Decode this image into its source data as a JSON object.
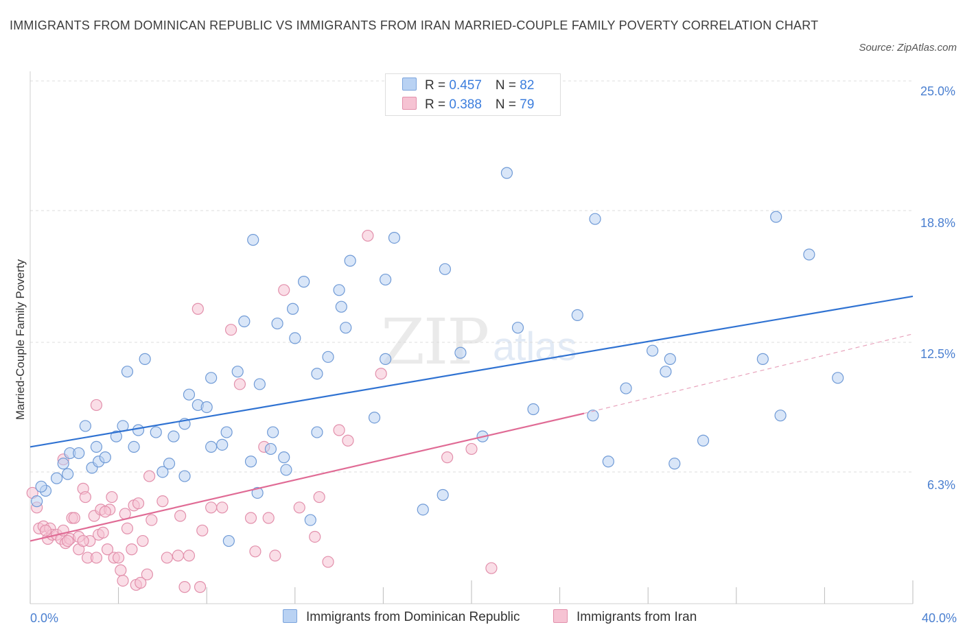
{
  "title": "IMMIGRANTS FROM DOMINICAN REPUBLIC VS IMMIGRANTS FROM IRAN MARRIED-COUPLE FAMILY POVERTY CORRELATION CHART",
  "source": "Source: ZipAtlas.com",
  "watermark": {
    "zip": "ZIP",
    "atlas": "atlas"
  },
  "legend": {
    "rows": [
      {
        "r_label": "R = ",
        "r_value": "0.457",
        "n_label": "N = ",
        "n_value": "82"
      },
      {
        "r_label": "R = ",
        "r_value": "0.388",
        "n_label": "N = ",
        "n_value": "79"
      }
    ]
  },
  "bottom_legend": [
    "Immigrants from Dominican Republic",
    "Immigrants from Iran"
  ],
  "colors": {
    "blue": "#4a7fd0",
    "blue_fill": "#b9d2f3",
    "pink": "#e06b95",
    "pink_fill": "#f6c3d3",
    "accent": "#3b7ddd"
  },
  "chart_data": {
    "type": "scatter",
    "title": "IMMIGRANTS FROM DOMINICAN REPUBLIC VS IMMIGRANTS FROM IRAN MARRIED-COUPLE FAMILY POVERTY CORRELATION CHART",
    "xlabel": "",
    "ylabel": "Married-Couple Family Poverty",
    "xlim": [
      0,
      40
    ],
    "ylim": [
      0,
      25
    ],
    "x_tick_labels": [
      "0.0%",
      "40.0%"
    ],
    "y_tick_labels": [
      "6.3%",
      "12.5%",
      "18.8%",
      "25.0%"
    ],
    "y_tick_values": [
      6.3,
      12.5,
      18.8,
      25.0
    ],
    "grid": true,
    "legend_position": "top-center",
    "series": [
      {
        "name": "Immigrants from Dominican Republic",
        "color": "#4a7fd0",
        "R": 0.457,
        "N": 82,
        "trend": {
          "x": [
            0,
            40
          ],
          "y": [
            7.5,
            14.7
          ]
        },
        "points": [
          [
            0.3,
            4.9
          ],
          [
            0.7,
            5.4
          ],
          [
            0.5,
            5.6
          ],
          [
            1.2,
            6.0
          ],
          [
            1.7,
            6.2
          ],
          [
            1.5,
            6.7
          ],
          [
            1.8,
            7.2
          ],
          [
            2.2,
            7.2
          ],
          [
            2.8,
            6.5
          ],
          [
            3.1,
            6.8
          ],
          [
            3.4,
            7.0
          ],
          [
            3.0,
            7.5
          ],
          [
            3.9,
            8.0
          ],
          [
            4.7,
            7.5
          ],
          [
            4.9,
            8.3
          ],
          [
            5.7,
            8.2
          ],
          [
            6.0,
            6.3
          ],
          [
            6.3,
            6.7
          ],
          [
            6.5,
            8.0
          ],
          [
            7.0,
            6.1
          ],
          [
            7.0,
            8.6
          ],
          [
            2.5,
            8.5
          ],
          [
            4.2,
            8.5
          ],
          [
            7.6,
            9.5
          ],
          [
            7.2,
            10.0
          ],
          [
            8.0,
            9.4
          ],
          [
            8.2,
            7.5
          ],
          [
            8.7,
            7.6
          ],
          [
            8.9,
            8.2
          ],
          [
            10.0,
            6.8
          ],
          [
            10.3,
            5.3
          ],
          [
            11.0,
            8.2
          ],
          [
            11.5,
            7.0
          ],
          [
            11.6,
            6.4
          ],
          [
            12.7,
            4.0
          ],
          [
            13.0,
            8.2
          ],
          [
            13.0,
            11.0
          ],
          [
            13.5,
            11.8
          ],
          [
            14.0,
            15.0
          ],
          [
            14.1,
            14.2
          ],
          [
            14.3,
            13.2
          ],
          [
            14.5,
            16.4
          ],
          [
            16.1,
            15.5
          ],
          [
            16.1,
            11.7
          ],
          [
            16.5,
            17.5
          ],
          [
            15.6,
            8.9
          ],
          [
            17.8,
            4.5
          ],
          [
            18.7,
            5.2
          ],
          [
            18.8,
            16.0
          ],
          [
            19.5,
            12.0
          ],
          [
            20.5,
            8.0
          ],
          [
            21.6,
            20.6
          ],
          [
            22.1,
            13.2
          ],
          [
            22.8,
            9.3
          ],
          [
            24.8,
            13.8
          ],
          [
            25.5,
            9.0
          ],
          [
            25.6,
            18.4
          ],
          [
            26.2,
            6.8
          ],
          [
            27.0,
            10.3
          ],
          [
            28.2,
            12.1
          ],
          [
            28.8,
            11.1
          ],
          [
            29.0,
            11.7
          ],
          [
            29.2,
            6.7
          ],
          [
            30.5,
            7.8
          ],
          [
            33.2,
            11.7
          ],
          [
            33.8,
            18.5
          ],
          [
            34.0,
            9.0
          ],
          [
            35.3,
            16.7
          ],
          [
            36.6,
            10.8
          ],
          [
            4.4,
            11.1
          ],
          [
            5.2,
            11.7
          ],
          [
            8.2,
            10.8
          ],
          [
            9.4,
            11.1
          ],
          [
            10.4,
            10.5
          ],
          [
            9.7,
            13.5
          ],
          [
            10.1,
            17.4
          ],
          [
            11.2,
            13.4
          ],
          [
            11.9,
            14.1
          ],
          [
            12.0,
            12.7
          ],
          [
            12.4,
            15.4
          ],
          [
            10.9,
            7.4
          ],
          [
            9.0,
            3.0
          ]
        ]
      },
      {
        "name": "Immigrants from Iran",
        "color": "#e06b95",
        "R": 0.388,
        "N": 79,
        "trend": {
          "x": [
            0,
            25.1
          ],
          "y": [
            3.0,
            9.1
          ]
        },
        "trend_dashed": {
          "x": [
            25.1,
            40
          ],
          "y": [
            9.1,
            12.9
          ]
        },
        "points": [
          [
            0.1,
            5.3
          ],
          [
            0.3,
            4.6
          ],
          [
            0.4,
            3.6
          ],
          [
            0.6,
            3.7
          ],
          [
            0.8,
            3.1
          ],
          [
            0.9,
            3.6
          ],
          [
            1.0,
            3.3
          ],
          [
            1.2,
            3.3
          ],
          [
            1.4,
            3.1
          ],
          [
            1.5,
            6.9
          ],
          [
            1.5,
            3.5
          ],
          [
            1.6,
            2.9
          ],
          [
            1.8,
            3.1
          ],
          [
            1.9,
            4.1
          ],
          [
            2.0,
            4.1
          ],
          [
            2.2,
            2.6
          ],
          [
            2.2,
            3.2
          ],
          [
            2.4,
            5.5
          ],
          [
            2.5,
            5.1
          ],
          [
            2.6,
            2.2
          ],
          [
            2.7,
            3.0
          ],
          [
            2.9,
            4.2
          ],
          [
            3.0,
            2.2
          ],
          [
            3.1,
            3.3
          ],
          [
            3.2,
            4.5
          ],
          [
            3.3,
            3.4
          ],
          [
            3.5,
            2.6
          ],
          [
            3.6,
            4.5
          ],
          [
            3.7,
            5.1
          ],
          [
            3.8,
            2.2
          ],
          [
            4.0,
            2.2
          ],
          [
            4.1,
            1.6
          ],
          [
            4.2,
            1.1
          ],
          [
            4.3,
            4.3
          ],
          [
            4.4,
            3.6
          ],
          [
            4.6,
            2.6
          ],
          [
            4.7,
            4.7
          ],
          [
            4.8,
            0.9
          ],
          [
            4.9,
            4.8
          ],
          [
            5.1,
            3.0
          ],
          [
            5.3,
            1.4
          ],
          [
            5.5,
            4.0
          ],
          [
            5.4,
            6.1
          ],
          [
            6.2,
            2.2
          ],
          [
            6.7,
            2.3
          ],
          [
            6.8,
            4.2
          ],
          [
            7.0,
            0.8
          ],
          [
            7.2,
            2.3
          ],
          [
            7.7,
            0.8
          ],
          [
            7.8,
            3.5
          ],
          [
            8.2,
            4.6
          ],
          [
            8.7,
            4.6
          ],
          [
            9.1,
            13.1
          ],
          [
            9.5,
            10.5
          ],
          [
            10.0,
            4.1
          ],
          [
            10.2,
            2.5
          ],
          [
            10.6,
            7.5
          ],
          [
            10.8,
            4.1
          ],
          [
            11.1,
            2.3
          ],
          [
            11.5,
            15.0
          ],
          [
            12.2,
            4.6
          ],
          [
            12.9,
            3.2
          ],
          [
            13.1,
            5.1
          ],
          [
            13.5,
            2.0
          ],
          [
            14.0,
            8.3
          ],
          [
            14.4,
            7.8
          ],
          [
            15.3,
            17.6
          ],
          [
            15.9,
            11.0
          ],
          [
            18.9,
            7.0
          ],
          [
            20.0,
            7.4
          ],
          [
            20.9,
            1.7
          ],
          [
            7.6,
            14.1
          ],
          [
            3.0,
            9.5
          ],
          [
            1.7,
            3.0
          ],
          [
            0.7,
            3.5
          ],
          [
            2.4,
            3.0
          ],
          [
            5.0,
            1.0
          ],
          [
            3.4,
            4.4
          ],
          [
            6.0,
            4.9
          ]
        ]
      }
    ]
  }
}
